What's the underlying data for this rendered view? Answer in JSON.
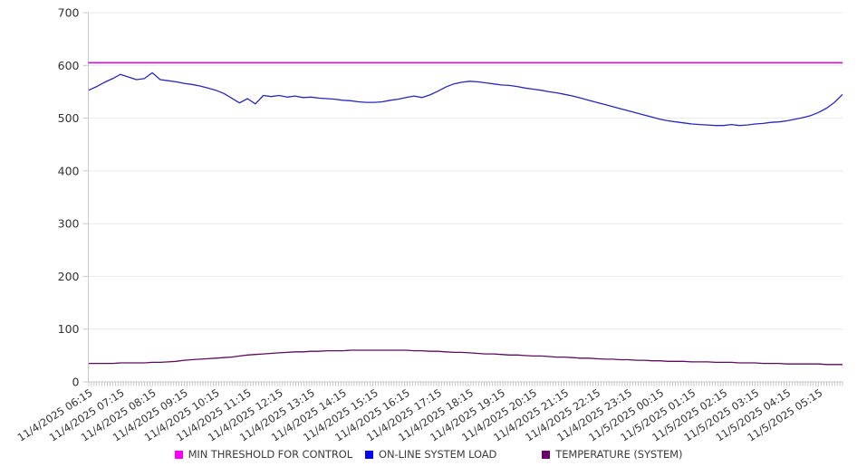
{
  "chart_data": {
    "type": "line",
    "title": "",
    "grid": true,
    "legend_position": "bottom",
    "y_axis": {
      "min": 0,
      "max": 700,
      "step": 100
    },
    "x_axis": {
      "sample_interval_minutes": 15,
      "tick_labels": [
        "11/4/2025 06:15",
        "11/4/2025 07:15",
        "11/4/2025 08:15",
        "11/4/2025 09:15",
        "11/4/2025 10:15",
        "11/4/2025 11:15",
        "11/4/2025 12:15",
        "11/4/2025 13:15",
        "11/4/2025 14:15",
        "11/4/2025 15:15",
        "11/4/2025 16:15",
        "11/4/2025 17:15",
        "11/4/2025 18:15",
        "11/4/2025 19:15",
        "11/4/2025 20:15",
        "11/4/2025 21:15",
        "11/4/2025 22:15",
        "11/4/2025 23:15",
        "11/5/2025 00:15",
        "11/5/2025 01:15",
        "11/5/2025 02:15",
        "11/5/2025 03:15",
        "11/5/2025 04:15",
        "11/5/2025 05:15"
      ]
    },
    "series": [
      {
        "name": "MIN THRESHOLD FOR CONTROL",
        "type": "threshold",
        "color": "#c322c3",
        "legend_color": "#fa00fa",
        "constant_value": 605
      },
      {
        "name": "ON-LINE SYSTEM LOAD",
        "type": "line",
        "color": "#2727be",
        "legend_color": "#0505f0",
        "values": [
          553,
          560,
          568,
          575,
          583,
          578,
          573,
          575,
          586,
          573,
          571,
          569,
          566,
          564,
          561,
          557,
          553,
          547,
          538,
          529,
          537,
          527,
          543,
          541,
          543,
          540,
          542,
          539,
          540,
          538,
          537,
          536,
          534,
          533,
          531,
          530,
          530,
          531,
          534,
          536,
          539,
          542,
          539,
          544,
          551,
          559,
          565,
          568,
          570,
          569,
          567,
          565,
          563,
          562,
          560,
          557,
          555,
          553,
          550,
          548,
          545,
          542,
          538,
          534,
          530,
          526,
          522,
          518,
          514,
          510,
          506,
          502,
          498,
          495,
          493,
          491,
          489,
          488,
          487,
          486,
          486,
          488,
          486,
          487,
          489,
          490,
          492,
          493,
          495,
          498,
          501,
          505,
          511,
          519,
          530,
          545
        ]
      },
      {
        "name": "TEMPERATURE (SYSTEM)",
        "type": "line",
        "color": "#5f0b5f",
        "legend_color": "#6b006b",
        "values": [
          35,
          35,
          35,
          35,
          36,
          36,
          36,
          36,
          37,
          37,
          38,
          39,
          41,
          42,
          43,
          44,
          45,
          46,
          47,
          49,
          51,
          52,
          53,
          54,
          55,
          56,
          57,
          57,
          58,
          58,
          59,
          59,
          59,
          60,
          60,
          60,
          60,
          60,
          60,
          60,
          60,
          59,
          59,
          58,
          58,
          57,
          56,
          56,
          55,
          54,
          53,
          53,
          52,
          51,
          51,
          50,
          49,
          49,
          48,
          47,
          47,
          46,
          45,
          45,
          44,
          43,
          43,
          42,
          42,
          41,
          41,
          40,
          40,
          39,
          39,
          39,
          38,
          38,
          38,
          37,
          37,
          37,
          36,
          36,
          36,
          35,
          35,
          35,
          34,
          34,
          34,
          34,
          34,
          33,
          33,
          33
        ]
      }
    ]
  }
}
